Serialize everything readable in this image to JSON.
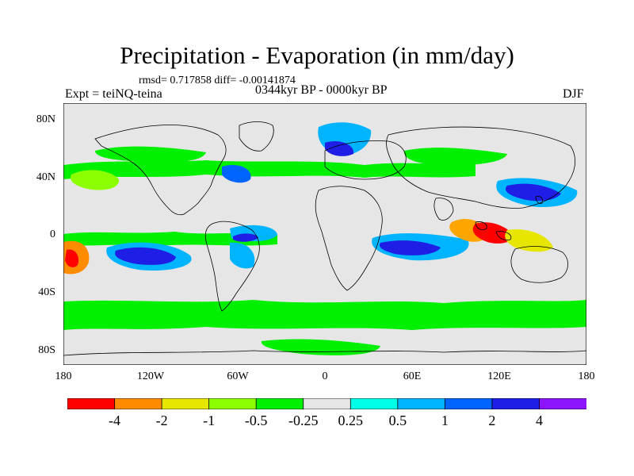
{
  "header": {
    "title": "Precipitation - Evaporation (in mm/day)",
    "stats": "rmsd= 0.717858 diff= -0.00141874",
    "experiment": "Expt = teiNQ-teina",
    "period": "0344kyr BP - 0000kyr BP",
    "season": "DJF"
  },
  "map": {
    "lat_labels": [
      "80N",
      "40N",
      "0",
      "40S",
      "80S"
    ],
    "lon_labels": [
      "180",
      "120W",
      "60W",
      "0",
      "60E",
      "120E",
      "180"
    ],
    "background_color": "#e6e6e6"
  },
  "colorbar": {
    "colors": [
      "#ff0000",
      "#ff8c00",
      "#e6e600",
      "#8cff00",
      "#00f000",
      "#e6e6e6",
      "#00ffe6",
      "#00b4ff",
      "#0064ff",
      "#1e1ee6",
      "#8c14ff"
    ],
    "labels": [
      "-4",
      "-2",
      "-1",
      "-0.5",
      "-0.25",
      "0.25",
      "0.5",
      "1",
      "2",
      "4"
    ]
  }
}
